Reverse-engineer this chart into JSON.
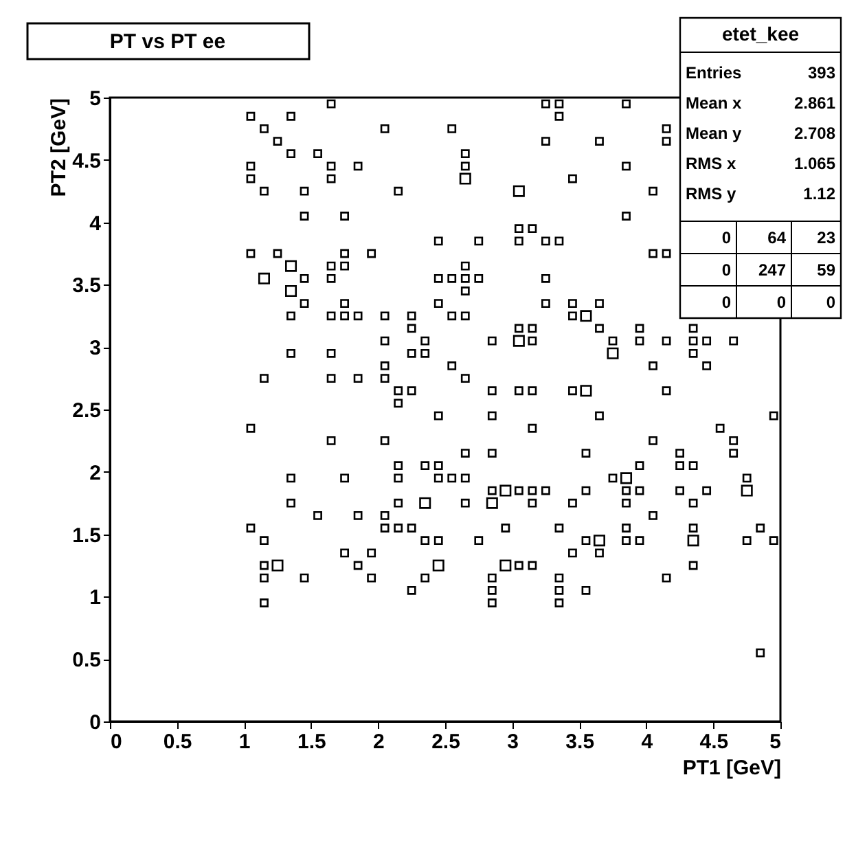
{
  "chart_data": {
    "type": "bubble",
    "title": "PT vs PT ee",
    "xlabel": "PT1 [GeV]",
    "ylabel": "PT2 [GeV]",
    "xlim": [
      0,
      5
    ],
    "ylim": [
      0,
      5
    ],
    "xticks": [
      0,
      0.5,
      1,
      1.5,
      2,
      2.5,
      3,
      3.5,
      4,
      4.5,
      5
    ],
    "yticks": [
      0,
      0.5,
      1,
      1.5,
      2,
      2.5,
      3,
      3.5,
      4,
      4.5,
      5
    ],
    "marker": "square",
    "grid": false,
    "annotations": [
      "etet_kee",
      "Entries",
      "393",
      "Mean x",
      "2.861",
      "Mean y",
      "2.708",
      "RMS x",
      "1.065",
      "RMS y",
      "1.12",
      "0",
      "64",
      "23",
      "0",
      "247",
      "59",
      "0",
      "0",
      "0"
    ],
    "series": [
      {
        "color": "#000000",
        "x": [
          1.65,
          1.05,
          1.35,
          1.15,
          2.05,
          2.55,
          1.25,
          1.35,
          1.55,
          1.05,
          1.65,
          1.85,
          1.05,
          1.65,
          1.15,
          1.45,
          2.15,
          1.45,
          1.75,
          2.45,
          1.05,
          1.25,
          1.75,
          1.95,
          1.35,
          1.65,
          1.75,
          1.15,
          1.45,
          1.65,
          2.45,
          2.55,
          1.35,
          1.45,
          1.75,
          2.45,
          1.35,
          1.65,
          1.75,
          1.85,
          2.05,
          2.25,
          2.55,
          2.25,
          2.05,
          2.35,
          1.35,
          1.65,
          2.25,
          2.35,
          2.05,
          2.55,
          1.15,
          1.65,
          1.85,
          2.05,
          2.15,
          2.25,
          2.15,
          2.45,
          1.05
        ],
        "values": [
          4.95,
          4.85,
          4.85,
          4.75,
          4.75,
          4.75,
          4.65,
          4.55,
          4.55,
          4.45,
          4.45,
          4.45,
          4.35,
          4.35,
          4.25,
          4.25,
          4.25,
          4.05,
          4.05,
          3.85,
          3.75,
          3.75,
          3.75,
          3.75,
          3.65,
          3.65,
          3.65,
          3.55,
          3.55,
          3.55,
          3.55,
          3.55,
          3.45,
          3.35,
          3.35,
          3.35,
          3.25,
          3.25,
          3.25,
          3.25,
          3.25,
          3.25,
          3.25,
          3.15,
          3.05,
          3.05,
          2.95,
          2.95,
          2.95,
          2.95,
          2.85,
          2.85,
          2.75,
          2.75,
          2.75,
          2.75,
          2.65,
          2.65,
          2.55,
          2.45,
          2.35
        ],
        "sizes": [
          0.5,
          0.5,
          0.5,
          0.5,
          0.5,
          0.5,
          0.5,
          0.5,
          0.5,
          0.5,
          0.5,
          0.5,
          0.5,
          0.5,
          0.5,
          0.5,
          0.5,
          0.5,
          0.5,
          0.5,
          0.5,
          0.5,
          0.5,
          0.5,
          1,
          0.5,
          0.5,
          1,
          0.5,
          0.5,
          0.5,
          0.5,
          1,
          0.5,
          0.5,
          0.5,
          0.5,
          0.5,
          0.5,
          0.5,
          0.5,
          0.5,
          0.5,
          0.5,
          0.5,
          0.5,
          0.5,
          0.5,
          0.5,
          0.5,
          0.5,
          0.5,
          0.5,
          0.5,
          0.5,
          0.5,
          0.5,
          0.5,
          0.5,
          0.5,
          0.5
        ]
      },
      {
        "color": "#000000",
        "x": [
          3.25,
          3.35,
          3.85,
          3.35,
          4.15,
          3.25,
          3.65,
          4.15,
          2.65,
          2.65,
          3.85,
          2.65,
          3.45,
          3.05,
          4.05,
          3.85,
          3.05,
          3.15,
          2.75,
          3.05,
          3.25,
          3.35,
          4.05,
          4.15,
          2.65,
          2.65,
          2.75,
          3.25,
          2.65,
          3.25,
          3.45,
          3.65,
          2.65,
          3.45,
          3.55,
          3.05,
          3.15,
          3.65,
          3.95,
          4.35,
          2.85,
          3.05,
          3.15,
          3.75,
          3.95,
          4.15,
          4.35,
          4.45,
          4.65,
          3.75,
          4.35,
          4.05,
          4.45,
          2.65,
          2.85,
          3.05,
          3.15,
          3.45,
          3.55,
          4.15,
          2.85,
          3.65,
          4.95,
          3.15,
          4.55
        ],
        "values": [
          4.95,
          4.95,
          4.95,
          4.85,
          4.75,
          4.65,
          4.65,
          4.65,
          4.55,
          4.45,
          4.45,
          4.35,
          4.35,
          4.25,
          4.25,
          4.05,
          3.95,
          3.95,
          3.85,
          3.85,
          3.85,
          3.85,
          3.75,
          3.75,
          3.65,
          3.55,
          3.55,
          3.55,
          3.45,
          3.35,
          3.35,
          3.35,
          3.25,
          3.25,
          3.25,
          3.15,
          3.15,
          3.15,
          3.15,
          3.15,
          3.05,
          3.05,
          3.05,
          3.05,
          3.05,
          3.05,
          3.05,
          3.05,
          3.05,
          2.95,
          2.95,
          2.85,
          2.85,
          2.75,
          2.65,
          2.65,
          2.65,
          2.65,
          2.65,
          2.65,
          2.45,
          2.45,
          2.45,
          2.35,
          2.35
        ],
        "sizes": [
          0.5,
          0.5,
          0.5,
          0.5,
          0.5,
          0.5,
          0.5,
          0.5,
          0.5,
          0.5,
          0.5,
          1,
          0.5,
          1,
          0.5,
          0.5,
          0.5,
          0.5,
          0.5,
          0.5,
          0.5,
          0.5,
          0.5,
          0.5,
          0.5,
          0.5,
          0.5,
          0.5,
          0.5,
          0.5,
          0.5,
          0.5,
          0.5,
          0.5,
          1,
          0.5,
          0.5,
          0.5,
          0.5,
          0.5,
          0.5,
          1,
          0.5,
          0.5,
          0.5,
          0.5,
          0.5,
          0.5,
          0.5,
          1,
          0.5,
          0.5,
          0.5,
          0.5,
          0.5,
          0.5,
          0.5,
          0.5,
          1,
          0.5,
          0.5,
          0.5,
          0.5,
          0.5,
          0.5
        ]
      },
      {
        "color": "#000000",
        "x": [
          1.65,
          2.05,
          2.15,
          2.35,
          2.45,
          1.35,
          1.75,
          2.15,
          2.45,
          2.55,
          1.35,
          2.15,
          2.35,
          1.55,
          1.85,
          2.05,
          1.05,
          2.05,
          2.15,
          2.25,
          1.15,
          2.35,
          2.45,
          1.75,
          1.95,
          1.15,
          1.25,
          1.85,
          2.45,
          1.15,
          1.45,
          1.95,
          2.35,
          2.25,
          1.15
        ],
        "values": [
          2.25,
          2.25,
          2.05,
          2.05,
          2.05,
          1.95,
          1.95,
          1.95,
          1.95,
          1.95,
          1.75,
          1.75,
          1.75,
          1.65,
          1.65,
          1.65,
          1.55,
          1.55,
          1.55,
          1.55,
          1.45,
          1.45,
          1.45,
          1.35,
          1.35,
          1.25,
          1.25,
          1.25,
          1.25,
          1.15,
          1.15,
          1.15,
          1.15,
          1.05,
          0.95
        ],
        "sizes": [
          0.5,
          0.5,
          0.5,
          0.5,
          0.5,
          0.5,
          0.5,
          0.5,
          0.5,
          0.5,
          0.5,
          0.5,
          1,
          0.5,
          0.5,
          0.5,
          0.5,
          0.5,
          0.5,
          0.5,
          0.5,
          0.5,
          0.5,
          0.5,
          0.5,
          0.5,
          1,
          0.5,
          1,
          0.5,
          0.5,
          0.5,
          0.5,
          0.5,
          0.5
        ]
      },
      {
        "color": "#000000",
        "x": [
          4.05,
          4.65,
          2.65,
          2.85,
          3.55,
          4.25,
          4.65,
          3.95,
          4.25,
          4.35,
          2.65,
          3.75,
          3.85,
          4.75,
          2.85,
          2.95,
          3.05,
          3.15,
          3.25,
          3.55,
          3.85,
          3.95,
          4.25,
          4.45,
          4.75,
          2.65,
          2.85,
          3.15,
          3.45,
          3.85,
          4.35,
          4.05,
          2.95,
          3.35,
          3.85,
          4.35,
          4.85,
          2.75,
          3.55,
          3.65,
          3.85,
          3.95,
          4.35,
          4.75,
          4.95,
          3.45,
          3.65,
          2.95,
          3.05,
          3.15,
          4.35,
          2.85,
          3.35,
          4.15,
          2.85,
          3.35,
          3.55,
          2.85,
          3.35,
          4.85
        ],
        "values": [
          2.25,
          2.25,
          2.15,
          2.15,
          2.15,
          2.15,
          2.15,
          2.05,
          2.05,
          2.05,
          1.95,
          1.95,
          1.95,
          1.95,
          1.85,
          1.85,
          1.85,
          1.85,
          1.85,
          1.85,
          1.85,
          1.85,
          1.85,
          1.85,
          1.85,
          1.75,
          1.75,
          1.75,
          1.75,
          1.75,
          1.75,
          1.65,
          1.55,
          1.55,
          1.55,
          1.55,
          1.55,
          1.45,
          1.45,
          1.45,
          1.45,
          1.45,
          1.45,
          1.45,
          1.45,
          1.35,
          1.35,
          1.25,
          1.25,
          1.25,
          1.25,
          1.15,
          1.15,
          1.15,
          1.05,
          1.05,
          1.05,
          0.95,
          0.95,
          0.55
        ],
        "sizes": [
          0.5,
          0.5,
          0.5,
          0.5,
          0.5,
          0.5,
          0.5,
          0.5,
          0.5,
          0.5,
          0.5,
          0.5,
          1,
          0.5,
          0.5,
          1,
          0.5,
          0.5,
          0.5,
          0.5,
          0.5,
          0.5,
          0.5,
          0.5,
          1,
          0.5,
          1,
          0.5,
          0.5,
          0.5,
          0.5,
          0.5,
          0.5,
          0.5,
          0.5,
          0.5,
          0.5,
          0.5,
          0.5,
          1,
          0.5,
          0.5,
          1,
          0.5,
          0.5,
          0.5,
          0.5,
          1,
          0.5,
          0.5,
          0.5,
          0.5,
          0.5,
          0.5,
          0.5,
          0.5,
          0.5,
          0.5,
          0.5,
          0.5
        ]
      }
    ]
  }
}
